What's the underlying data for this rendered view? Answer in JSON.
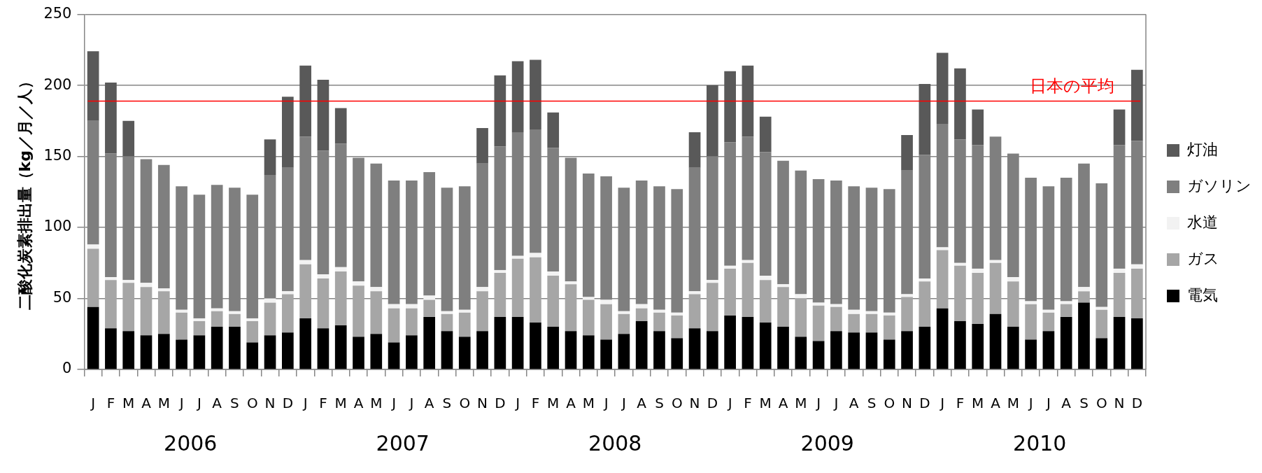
{
  "chart_data": {
    "type": "bar",
    "stacked": true,
    "ylabel": "二酸化炭素排出量（kg／月／人）",
    "categories": [
      "J",
      "F",
      "M",
      "A",
      "M",
      "J",
      "J",
      "A",
      "S",
      "O",
      "N",
      "D",
      "J",
      "F",
      "M",
      "A",
      "M",
      "J",
      "J",
      "A",
      "S",
      "O",
      "N",
      "D",
      "J",
      "F",
      "M",
      "A",
      "M",
      "J",
      "J",
      "A",
      "S",
      "O",
      "N",
      "D",
      "J",
      "F",
      "M",
      "A",
      "M",
      "J",
      "J",
      "A",
      "S",
      "O",
      "N",
      "D",
      "J",
      "F",
      "M",
      "A",
      "M",
      "J",
      "J",
      "A",
      "S",
      "O",
      "N",
      "D"
    ],
    "series": [
      {
        "name": "電気",
        "color": "#000000",
        "values": [
          44,
          29,
          27,
          24,
          25,
          21,
          24,
          30,
          30,
          19,
          24,
          26,
          36,
          29,
          31,
          23,
          25,
          19,
          24,
          37,
          27,
          23,
          27,
          37,
          37,
          33,
          30,
          27,
          24,
          21,
          25,
          34,
          27,
          22,
          29,
          27,
          38,
          37,
          33,
          30,
          23,
          20,
          27,
          26,
          26,
          21,
          27,
          30,
          43,
          34,
          32,
          39,
          30,
          21,
          27,
          37,
          47,
          22,
          37,
          36
        ]
      },
      {
        "name": "ガス",
        "color": "#a6a6a6",
        "values": [
          41,
          34,
          34,
          34,
          30,
          19,
          10,
          11,
          9,
          15,
          23,
          27,
          38,
          35,
          38,
          36,
          30,
          24,
          19,
          12,
          12,
          17,
          28,
          31,
          41,
          46,
          36,
          33,
          25,
          25,
          14,
          9,
          13,
          16,
          24,
          34,
          33,
          38,
          30,
          28,
          27,
          25,
          17,
          13,
          13,
          17,
          24,
          32,
          41,
          39,
          36,
          36,
          32,
          25,
          13,
          9,
          8,
          20,
          31,
          35
        ]
      },
      {
        "name": "水道",
        "color": "#f2f2f2",
        "values": [
          3,
          2,
          2,
          3,
          2,
          2,
          2,
          2,
          2,
          2,
          3,
          2,
          3,
          3,
          3,
          3,
          3,
          3,
          3,
          3,
          2,
          2,
          3,
          2,
          2,
          3,
          3,
          2,
          2,
          3,
          2,
          3,
          2,
          2,
          2,
          2,
          2,
          2,
          3,
          2,
          3,
          2,
          2,
          3,
          2,
          2,
          2,
          2,
          2,
          2,
          3,
          2,
          3,
          2,
          2,
          2,
          3,
          2,
          3,
          3
        ]
      },
      {
        "name": "ガソリン",
        "color": "#7f7f7f",
        "values": [
          87,
          87,
          87,
          87,
          87,
          87,
          87,
          87,
          87,
          87,
          87,
          87,
          87,
          87,
          87,
          87,
          87,
          87,
          87,
          87,
          87,
          87,
          87,
          87,
          87,
          87,
          87,
          87,
          87,
          87,
          87,
          87,
          87,
          87,
          87,
          87,
          87,
          87,
          87,
          87,
          87,
          87,
          87,
          87,
          87,
          87,
          87,
          87,
          87,
          87,
          87,
          87,
          87,
          87,
          87,
          87,
          87,
          87,
          87,
          87
        ]
      },
      {
        "name": "灯油",
        "color": "#595959",
        "values": [
          49,
          50,
          25,
          null,
          null,
          null,
          null,
          null,
          null,
          null,
          25,
          50,
          50,
          50,
          25,
          null,
          null,
          null,
          null,
          null,
          null,
          null,
          25,
          50,
          50,
          49,
          25,
          null,
          null,
          null,
          null,
          null,
          null,
          null,
          25,
          50,
          50,
          50,
          25,
          null,
          null,
          null,
          null,
          null,
          null,
          null,
          25,
          50,
          50,
          50,
          25,
          null,
          null,
          null,
          null,
          null,
          null,
          null,
          25,
          50
        ]
      }
    ],
    "ylim": [
      0,
      250
    ],
    "yticks": [
      0,
      50,
      100,
      150,
      200,
      250
    ],
    "grid": "y",
    "legend": "right",
    "ref_lines": [
      {
        "axis": "y",
        "value": 189,
        "label": "日本の平均",
        "color": "#ff0000"
      }
    ],
    "annotations": [
      "2006",
      "2007",
      "2008",
      "2009",
      "2010"
    ]
  }
}
